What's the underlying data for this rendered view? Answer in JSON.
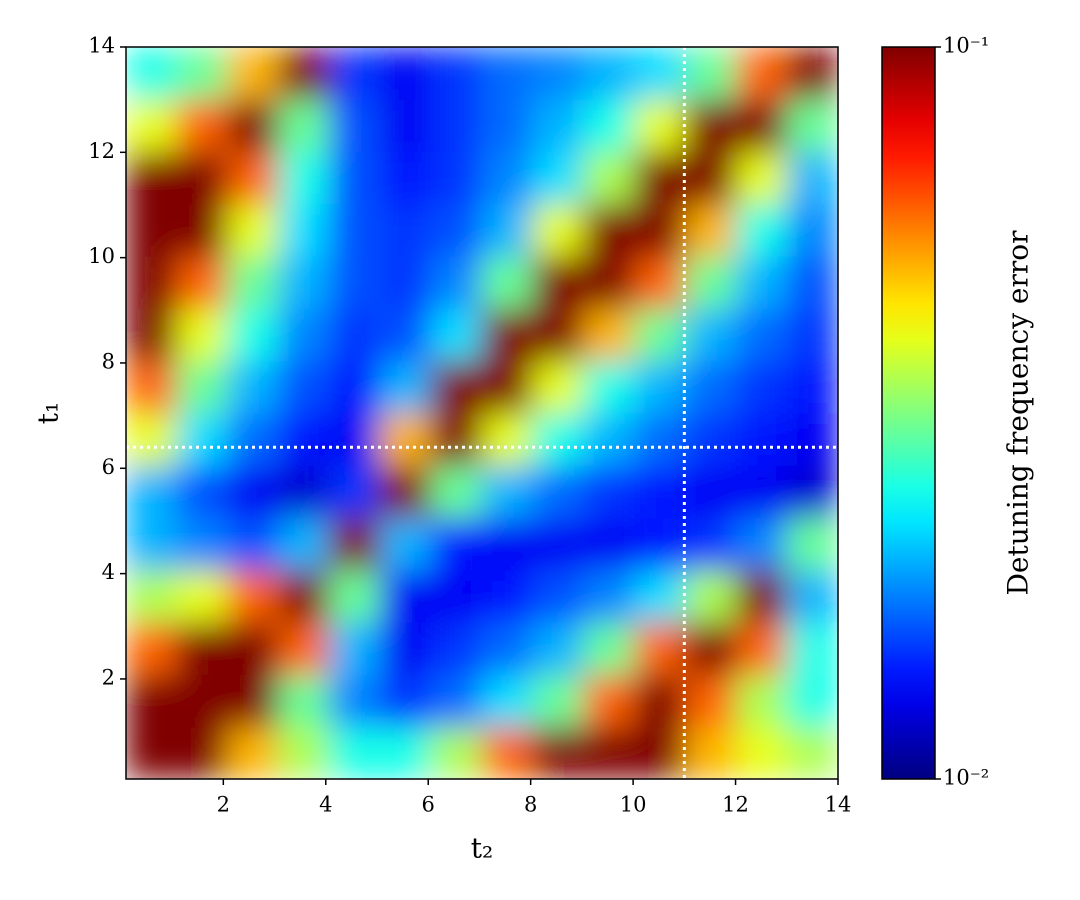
{
  "chart_data": {
    "type": "heatmap",
    "xlabel": "t₂",
    "ylabel": "t₁",
    "colorbar_label": "Detuning frequency error",
    "xlim": [
      0.1,
      14
    ],
    "ylim": [
      0.1,
      14
    ],
    "xticks": [
      2,
      4,
      6,
      8,
      10,
      12,
      14
    ],
    "yticks": [
      2,
      4,
      6,
      8,
      10,
      12,
      14
    ],
    "clim": [
      0.01,
      0.1
    ],
    "color_scale": "log",
    "colormap": "jet",
    "cticks": [
      {
        "value": 0.1,
        "label": "10⁻¹"
      },
      {
        "value": 0.01,
        "label": "10⁻²"
      }
    ],
    "vlines": [
      11
    ],
    "hlines": [
      6.4
    ],
    "line_color": "#ffffff",
    "z": [
      [
        0.1,
        0.1,
        0.05,
        0.035,
        0.025,
        0.025,
        0.035,
        0.06,
        0.1,
        0.1,
        0.1,
        0.05,
        0.04,
        0.035
      ],
      [
        0.1,
        0.1,
        0.1,
        0.03,
        0.018,
        0.015,
        0.017,
        0.022,
        0.03,
        0.06,
        0.1,
        0.06,
        0.035,
        0.025
      ],
      [
        0.06,
        0.1,
        0.1,
        0.06,
        0.02,
        0.013,
        0.015,
        0.017,
        0.02,
        0.03,
        0.06,
        0.1,
        0.06,
        0.025
      ],
      [
        0.035,
        0.04,
        0.06,
        0.1,
        0.03,
        0.013,
        0.013,
        0.014,
        0.016,
        0.018,
        0.022,
        0.035,
        0.1,
        0.02
      ],
      [
        0.02,
        0.018,
        0.016,
        0.02,
        0.1,
        0.02,
        0.014,
        0.013,
        0.013,
        0.013,
        0.014,
        0.015,
        0.018,
        0.03
      ],
      [
        0.02,
        0.016,
        0.013,
        0.012,
        0.015,
        0.1,
        0.03,
        0.02,
        0.017,
        0.015,
        0.014,
        0.013,
        0.013,
        0.012
      ],
      [
        0.04,
        0.022,
        0.017,
        0.014,
        0.013,
        0.05,
        0.1,
        0.04,
        0.025,
        0.02,
        0.017,
        0.015,
        0.014,
        0.013
      ],
      [
        0.06,
        0.03,
        0.02,
        0.016,
        0.014,
        0.02,
        0.1,
        0.1,
        0.04,
        0.025,
        0.02,
        0.017,
        0.015,
        0.014
      ],
      [
        0.1,
        0.04,
        0.025,
        0.018,
        0.015,
        0.016,
        0.022,
        0.1,
        0.1,
        0.05,
        0.03,
        0.02,
        0.017,
        0.015
      ],
      [
        0.1,
        0.06,
        0.03,
        0.02,
        0.016,
        0.015,
        0.018,
        0.03,
        0.1,
        0.1,
        0.06,
        0.03,
        0.02,
        0.016
      ],
      [
        0.1,
        0.1,
        0.04,
        0.022,
        0.016,
        0.015,
        0.016,
        0.02,
        0.04,
        0.1,
        0.1,
        0.05,
        0.025,
        0.018
      ],
      [
        0.1,
        0.1,
        0.06,
        0.025,
        0.016,
        0.014,
        0.015,
        0.018,
        0.022,
        0.035,
        0.1,
        0.1,
        0.04,
        0.02
      ],
      [
        0.04,
        0.06,
        0.1,
        0.03,
        0.016,
        0.013,
        0.015,
        0.017,
        0.02,
        0.025,
        0.04,
        0.1,
        0.1,
        0.03
      ],
      [
        0.025,
        0.03,
        0.05,
        0.1,
        0.015,
        0.013,
        0.015,
        0.017,
        0.018,
        0.02,
        0.022,
        0.03,
        0.06,
        0.1
      ]
    ]
  }
}
